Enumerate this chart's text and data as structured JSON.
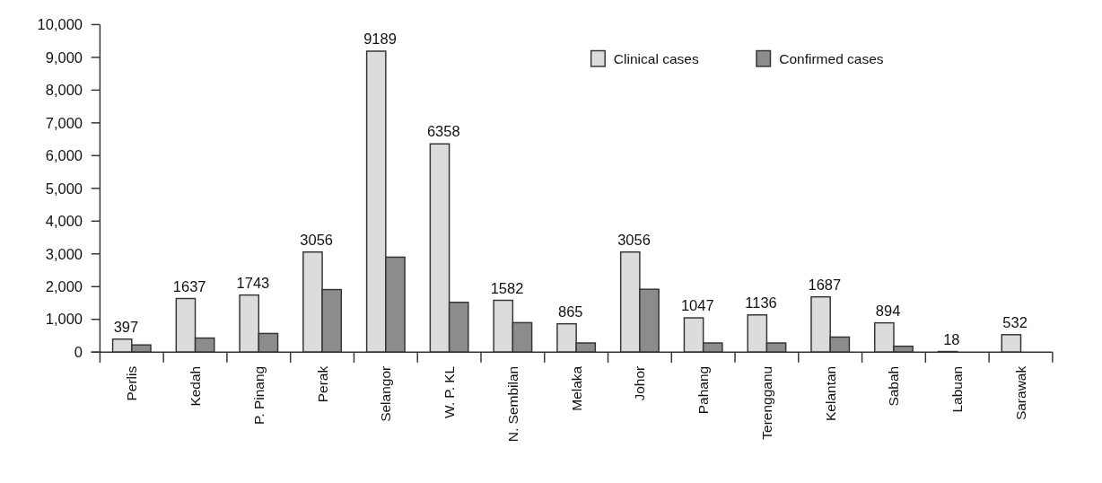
{
  "chart_data": {
    "type": "bar",
    "categories": [
      "Perlis",
      "Kedah",
      "P. Pinang",
      "Perak",
      "Selangor",
      "W. P. KL",
      "N. Sembilan",
      "Melaka",
      "Johor",
      "Pahang",
      "Terengganu",
      "Kelantan",
      "Sabah",
      "Labuan",
      "Sarawak"
    ],
    "series": [
      {
        "name": "Clinical cases",
        "color": "#dcdcdc",
        "values": [
          397,
          1637,
          1743,
          3056,
          9189,
          6358,
          1582,
          865,
          3056,
          1047,
          1136,
          1687,
          894,
          18,
          532
        ],
        "value_labels": [
          "397",
          "1637",
          "1743",
          "3056",
          "9189",
          "6358",
          "1582",
          "865",
          "3056",
          "1047",
          "1136",
          "1687",
          "894",
          "18",
          "532"
        ]
      },
      {
        "name": "Confirmed cases",
        "color": "#8c8c8c",
        "values": [
          220,
          430,
          570,
          1910,
          2900,
          1520,
          900,
          280,
          1920,
          280,
          280,
          460,
          180,
          null,
          null
        ]
      }
    ],
    "ylim": [
      0,
      10000
    ],
    "yticks": [
      {
        "value": 0,
        "label": "0"
      },
      {
        "value": 1000,
        "label": "1,000"
      },
      {
        "value": 2000,
        "label": "2,000"
      },
      {
        "value": 3000,
        "label": "3,000"
      },
      {
        "value": 4000,
        "label": "4,000"
      },
      {
        "value": 5000,
        "label": "5,000"
      },
      {
        "value": 6000,
        "label": "6,000"
      },
      {
        "value": 7000,
        "label": "7,000"
      },
      {
        "value": 8000,
        "label": "8,000"
      },
      {
        "value": 9000,
        "label": "9,000"
      },
      {
        "value": 10000,
        "label": "10,000"
      }
    ],
    "grid": false,
    "legend": "top right"
  }
}
